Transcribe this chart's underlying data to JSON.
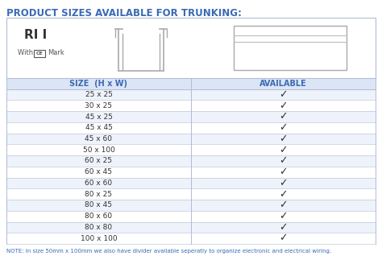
{
  "title": "PRODUCT SIZES AVAILABLE FOR TRUNKING:",
  "title_color": "#3a6ab5",
  "title_fontsize": 8.5,
  "ri_label": "RI I",
  "header_size": "SIZE  (H x W)",
  "header_available": "AVAILABLE",
  "header_color": "#3a6ab5",
  "header_bg": "#dce5f5",
  "sizes": [
    "25 x 25",
    "30 x 25",
    "45 x 25",
    "45 x 45",
    "45 x 60",
    "50 x 100",
    "60 x 25",
    "60 x 45",
    "60 x 60",
    "80 x 25",
    "80 x 45",
    "80 x 60",
    "80 x 80",
    "100 x 100"
  ],
  "row_even_bg": "#eef2fa",
  "row_odd_bg": "#ffffff",
  "border_color": "#b0bcd4",
  "checkmark": "✓",
  "checkmark_color": "#333333",
  "note": "NOTE: In size 50mm x 100mm we also have divider available seperatly to organize electronic and electrical wiring.",
  "note_color": "#3a6ab5",
  "note_fontsize": 5.0,
  "outer_bg": "#ffffff",
  "fig_w": 4.74,
  "fig_h": 3.23,
  "dpi": 100
}
